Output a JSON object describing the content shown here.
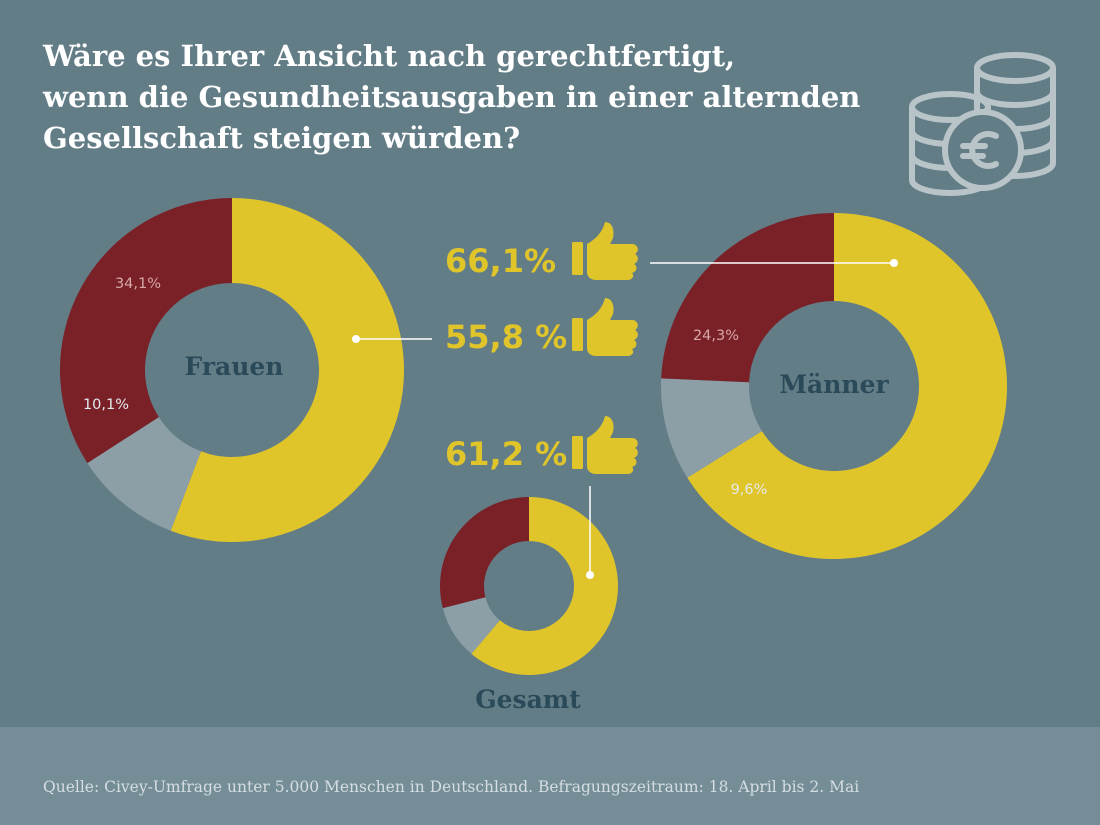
{
  "title_lines": [
    "Wäre es Ihrer Ansicht nach gerechtfertigt,",
    "wenn die Gesundheitsausgaben in einer alternden",
    "Gesellschaft steigen würden?"
  ],
  "source": "Quelle: Civey-Umfrage unter 5.000 Menschen in Deutschland. Befragungszeitraum: 18. April bis 2. Mai",
  "colors": {
    "background": "#637d87",
    "yes": "#e0c52a",
    "no": "#7a2128",
    "undecided": "#8c9ea6",
    "center_text": "#2a4a59",
    "icon": "#b8c4c8"
  },
  "icons": [
    "coins-euro-icon",
    "thumbs-up-icon"
  ],
  "chart_data": [
    {
      "type": "pie",
      "name": "Frauen",
      "slices": [
        {
          "key": "yes",
          "value": 55.8,
          "label": "55,8 %"
        },
        {
          "key": "undecided",
          "value": 10.1,
          "label": "10,1%"
        },
        {
          "key": "no",
          "value": 34.1,
          "label": "34,1%"
        }
      ]
    },
    {
      "type": "pie",
      "name": "Männer",
      "slices": [
        {
          "key": "yes",
          "value": 66.1,
          "label": "66,1%"
        },
        {
          "key": "undecided",
          "value": 9.6,
          "label": "9,6%"
        },
        {
          "key": "no",
          "value": 24.3,
          "label": "24,3%"
        }
      ]
    },
    {
      "type": "pie",
      "name": "Gesamt",
      "slices": [
        {
          "key": "yes",
          "value": 61.2,
          "label": "61,2 %"
        },
        {
          "key": "undecided",
          "value": 9.8,
          "label": ""
        },
        {
          "key": "no",
          "value": 29.0,
          "label": ""
        }
      ]
    }
  ]
}
